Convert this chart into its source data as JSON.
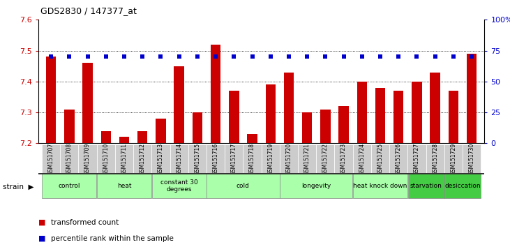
{
  "title": "GDS2830 / 147377_at",
  "samples": [
    "GSM151707",
    "GSM151708",
    "GSM151709",
    "GSM151710",
    "GSM151711",
    "GSM151712",
    "GSM151713",
    "GSM151714",
    "GSM151715",
    "GSM151716",
    "GSM151717",
    "GSM151718",
    "GSM151719",
    "GSM151720",
    "GSM151721",
    "GSM151722",
    "GSM151723",
    "GSM151724",
    "GSM151725",
    "GSM151726",
    "GSM151727",
    "GSM151728",
    "GSM151729",
    "GSM151730"
  ],
  "bar_values": [
    7.48,
    7.31,
    7.46,
    7.24,
    7.22,
    7.24,
    7.28,
    7.45,
    7.3,
    7.52,
    7.37,
    7.23,
    7.39,
    7.43,
    7.3,
    7.31,
    7.32,
    7.4,
    7.38,
    7.37,
    7.4,
    7.43,
    7.37,
    7.49
  ],
  "percentile_values": [
    70,
    70,
    70,
    70,
    70,
    70,
    70,
    70,
    70,
    70,
    70,
    70,
    70,
    70,
    70,
    70,
    70,
    70,
    70,
    70,
    70,
    70,
    70,
    70
  ],
  "bar_color": "#cc0000",
  "dot_color": "#0000cc",
  "ylim_left": [
    7.2,
    7.6
  ],
  "ylim_right": [
    0,
    100
  ],
  "yticks_left": [
    7.2,
    7.3,
    7.4,
    7.5,
    7.6
  ],
  "yticks_right": [
    0,
    25,
    50,
    75,
    100
  ],
  "ytick_right_labels": [
    "0",
    "25",
    "50",
    "75",
    "100%"
  ],
  "groups": [
    {
      "label": "control",
      "start": 0,
      "end": 3,
      "color": "#aaffaa"
    },
    {
      "label": "heat",
      "start": 3,
      "end": 6,
      "color": "#aaffaa"
    },
    {
      "label": "constant 30\ndegrees",
      "start": 6,
      "end": 9,
      "color": "#aaffaa"
    },
    {
      "label": "cold",
      "start": 9,
      "end": 13,
      "color": "#aaffaa"
    },
    {
      "label": "longevity",
      "start": 13,
      "end": 17,
      "color": "#aaffaa"
    },
    {
      "label": "heat knock down",
      "start": 17,
      "end": 20,
      "color": "#aaffaa"
    },
    {
      "label": "starvation",
      "start": 20,
      "end": 22,
      "color": "#44cc44"
    },
    {
      "label": "desiccation",
      "start": 22,
      "end": 24,
      "color": "#44cc44"
    }
  ],
  "grid_yticks": [
    7.3,
    7.4,
    7.5
  ],
  "bar_width": 0.55,
  "background_color": "#ffffff",
  "plot_bg_color": "#ffffff",
  "tick_bg_color": "#cccccc"
}
